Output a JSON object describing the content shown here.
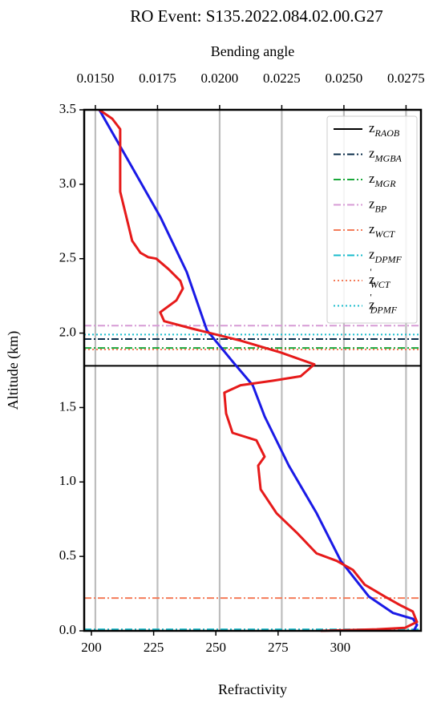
{
  "chart_data": {
    "type": "profile",
    "title": "RO Event: S135.2022.084.02.00.G27",
    "xlabel": "Refractivity",
    "x2label": "Bending angle",
    "ylabel": "Altitude (km)",
    "xlim": [
      197.1,
      332.4
    ],
    "xticks": [
      200,
      225,
      250,
      275,
      300
    ],
    "x2lim": [
      0.01455,
      0.0281
    ],
    "x2ticks": [
      {
        "value": 0.015,
        "label": "0.0150"
      },
      {
        "value": 0.0175,
        "label": "0.0175"
      },
      {
        "value": 0.02,
        "label": "0.0200"
      },
      {
        "value": 0.0225,
        "label": "0.0225"
      },
      {
        "value": 0.025,
        "label": "0.0250"
      },
      {
        "value": 0.0275,
        "label": "0.0275"
      }
    ],
    "ylim": [
      0,
      3.5
    ],
    "yticks": [
      {
        "value": 0,
        "label": "0.0"
      },
      {
        "value": 0.5,
        "label": "0.5"
      },
      {
        "value": 1,
        "label": "1.0"
      },
      {
        "value": 1.5,
        "label": "1.5"
      },
      {
        "value": 2,
        "label": "2.0"
      },
      {
        "value": 2.5,
        "label": "2.5"
      },
      {
        "value": 3,
        "label": "3.0"
      },
      {
        "value": 3.5,
        "label": "3.5"
      }
    ],
    "grid": true,
    "legend": "upper right",
    "series": [
      {
        "axis": "x",
        "color": "#1a1ae6",
        "x": [
          203.2,
          214.8,
          227.7,
          238.3,
          246.4,
          256.7,
          264.8,
          269.6,
          279.3,
          290.5,
          300.2,
          311.5,
          321.2,
          329.2,
          330.8,
          329.5
        ],
        "y": [
          3.5,
          3.16,
          2.78,
          2.41,
          2.02,
          1.81,
          1.65,
          1.44,
          1.11,
          0.79,
          0.47,
          0.23,
          0.12,
          0.08,
          0.04,
          0
        ]
      },
      {
        "axis": "x2",
        "color": "#e61a1a",
        "x": [
          0.01516,
          0.01568,
          0.016,
          0.016,
          0.016,
          0.01632,
          0.01648,
          0.01681,
          0.01713,
          0.01745,
          0.01794,
          0.01842,
          0.01852,
          0.01826,
          0.01761,
          0.01777,
          0.0189,
          0.02084,
          0.02245,
          0.02381,
          0.02326,
          0.02213,
          0.02084,
          0.02019,
          0.02026,
          0.02036,
          0.02052,
          0.02148,
          0.02181,
          0.02155,
          0.02165,
          0.02229,
          0.0231,
          0.0239,
          0.02471,
          0.02536,
          0.02584,
          0.02665,
          0.02729,
          0.02777,
          0.02794,
          0.02745,
          0.02632,
          0.02406
        ],
        "y": [
          3.5,
          3.44,
          3.37,
          3.16,
          2.95,
          2.73,
          2.62,
          2.54,
          2.51,
          2.5,
          2.43,
          2.35,
          2.3,
          2.22,
          2.14,
          2.08,
          2.03,
          1.95,
          1.87,
          1.79,
          1.71,
          1.68,
          1.65,
          1.6,
          1.46,
          1.41,
          1.33,
          1.28,
          1.17,
          1.11,
          0.95,
          0.79,
          0.66,
          0.52,
          0.47,
          0.41,
          0.31,
          0.23,
          0.17,
          0.13,
          0.06,
          0.02,
          0.01,
          0
        ]
      }
    ],
    "hlines": [
      {
        "name": "z",
        "sub": "RAOB",
        "color": "#000000",
        "style": "solid",
        "value": 1.78
      },
      {
        "name": "z",
        "sub": "MGBA",
        "color": "#0b2d4a",
        "style": "dashdot",
        "value": 1.96
      },
      {
        "name": "z",
        "sub": "MGR",
        "color": "#1aa83a",
        "style": "dashdot",
        "value": 1.9
      },
      {
        "name": "z",
        "sub": "BP",
        "color": "#d79bd6",
        "style": "dashdot",
        "value": 2.05
      },
      {
        "name": "z",
        "sub": "WCT",
        "color": "#f47c5a",
        "style": "dashdot",
        "value": 0.22
      },
      {
        "name": "z",
        "sub": "DPMF",
        "color": "#1bbccc",
        "style": "dashdot",
        "value": 0.01
      },
      {
        "name": "z",
        "sup": "'",
        "sub": "WCT",
        "color": "#f47c5a",
        "style": "dotted",
        "value": 1.89
      },
      {
        "name": "z",
        "sup": "'",
        "sub": "DPMF",
        "color": "#1bbccc",
        "style": "dotted",
        "value": 1.99
      }
    ]
  }
}
